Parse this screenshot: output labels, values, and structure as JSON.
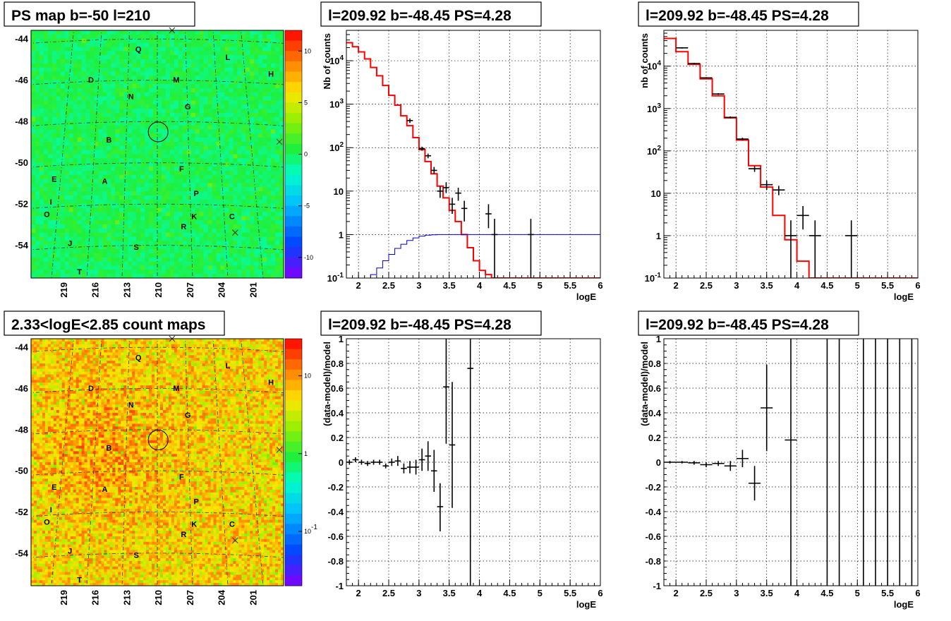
{
  "chart_data": [
    {
      "type": "heatmap",
      "title": "PS map b=-50 l=210",
      "xlim": [
        222,
        198
      ],
      "ylim": [
        -55.6,
        -43.6
      ],
      "x_ticks": [
        "219",
        "216",
        "213",
        "210",
        "207",
        "204",
        "201"
      ],
      "y_ticks": [
        "-44",
        "-46",
        "-48",
        "-50",
        "-52",
        "-54"
      ],
      "colorbar": {
        "min": -12,
        "max": 12,
        "scale": "linear",
        "ticks": [
          "10",
          "5",
          "0",
          "-5",
          "-10"
        ]
      },
      "labels": [
        {
          "text": "Q",
          "l": 211.8,
          "b": -44.5
        },
        {
          "text": "L",
          "l": 203.3,
          "b": -44.9
        },
        {
          "text": "H",
          "l": 199.2,
          "b": -45.7
        },
        {
          "text": "D",
          "l": 216.3,
          "b": -46.0
        },
        {
          "text": "M",
          "l": 208.2,
          "b": -46.0
        },
        {
          "text": "N",
          "l": 212.5,
          "b": -46.8
        },
        {
          "text": "G",
          "l": 207.1,
          "b": -47.3
        },
        {
          "text": "B",
          "l": 214.6,
          "b": -48.9
        },
        {
          "text": "F",
          "l": 207.7,
          "b": -50.3
        },
        {
          "text": "E",
          "l": 219.8,
          "b": -50.8
        },
        {
          "text": "A",
          "l": 215.0,
          "b": -50.9
        },
        {
          "text": "P",
          "l": 206.3,
          "b": -51.5
        },
        {
          "text": "I",
          "l": 220.1,
          "b": -51.9
        },
        {
          "text": "O",
          "l": 220.5,
          "b": -52.5
        },
        {
          "text": "K",
          "l": 206.5,
          "b": -52.6
        },
        {
          "text": "C",
          "l": 202.9,
          "b": -52.6
        },
        {
          "text": "R",
          "l": 207.5,
          "b": -53.1
        },
        {
          "text": "J",
          "l": 218.3,
          "b": -53.9
        },
        {
          "text": "S",
          "l": 212.0,
          "b": -54.1
        },
        {
          "text": "T",
          "l": 217.4,
          "b": -55.3
        }
      ]
    },
    {
      "type": "line",
      "title": "l=209.92 b=-48.45 PS=4.28",
      "xlabel": "logE",
      "ylabel": "Nb of counts",
      "xlim": [
        1.8,
        6
      ],
      "ylim": [
        0.1,
        50000
      ],
      "yscale": "log",
      "grid": true,
      "x_ticks": [
        "2",
        "2.5",
        "3",
        "3.5",
        "4",
        "4.5",
        "5",
        "5.5",
        "6"
      ],
      "y_ticks": [
        "10^{-1}",
        "1",
        "10",
        "10^{2}",
        "10^{3}",
        "10^{4}"
      ],
      "series": [
        {
          "style": "step",
          "color": "#ff0000",
          "edges": [
            1.8,
            1.9,
            2.0,
            2.1,
            2.2,
            2.3,
            2.4,
            2.5,
            2.6,
            2.7,
            2.8,
            2.9,
            3.0,
            3.1,
            3.2,
            3.3,
            3.4,
            3.5,
            3.6,
            3.7,
            3.8,
            3.9,
            4.0,
            4.1,
            4.2,
            4.3,
            4.4,
            6.0
          ],
          "values": [
            26000,
            21000,
            16000,
            11000,
            7000,
            4500,
            2700,
            1600,
            950,
            540,
            320,
            170,
            90,
            48,
            25,
            13,
            7,
            3.6,
            2.0,
            1.0,
            0.5,
            0.25,
            0.15,
            0.12,
            0.1,
            0.1,
            0.1
          ]
        },
        {
          "style": "step",
          "color": "#0000cc",
          "edges": [
            1.8,
            2.1,
            2.2,
            2.3,
            2.4,
            2.5,
            2.6,
            2.7,
            2.8,
            2.9,
            3.0,
            3.1,
            3.2,
            3.3,
            3.4,
            3.5,
            3.6,
            6.0
          ],
          "values": [
            0.1,
            0.1,
            0.12,
            0.17,
            0.25,
            0.35,
            0.48,
            0.6,
            0.73,
            0.84,
            0.92,
            0.97,
            0.99,
            1.0,
            1.0,
            1.0,
            1.0
          ]
        },
        {
          "style": "points",
          "color": "#000000",
          "points": [
            {
              "x": 2.85,
              "y": 420,
              "xerr": 0.05,
              "lo": 370,
              "hi": 470
            },
            {
              "x": 3.05,
              "y": 95,
              "xerr": 0.05,
              "lo": 85,
              "hi": 105
            },
            {
              "x": 3.15,
              "y": 65,
              "xerr": 0.05,
              "lo": 57,
              "hi": 73
            },
            {
              "x": 3.25,
              "y": 30,
              "xerr": 0.05,
              "lo": 25,
              "hi": 36
            },
            {
              "x": 3.35,
              "y": 10,
              "xerr": 0.05,
              "lo": 7,
              "hi": 13
            },
            {
              "x": 3.45,
              "y": 12,
              "xerr": 0.05,
              "lo": 9,
              "hi": 16
            },
            {
              "x": 3.55,
              "y": 5,
              "xerr": 0.05,
              "lo": 3,
              "hi": 7
            },
            {
              "x": 3.65,
              "y": 9,
              "xerr": 0.05,
              "lo": 6,
              "hi": 12
            },
            {
              "x": 3.75,
              "y": 4,
              "xerr": 0.05,
              "lo": 2,
              "hi": 6
            },
            {
              "x": 4.15,
              "y": 3,
              "xerr": 0.05,
              "lo": 1.4,
              "hi": 5
            },
            {
              "x": 4.25,
              "y": 1,
              "xerr": 0.05,
              "lo": 0.1,
              "hi": 2.3
            },
            {
              "x": 4.85,
              "y": 1,
              "xerr": 0.05,
              "lo": 0.1,
              "hi": 2.3
            }
          ]
        }
      ]
    },
    {
      "type": "line",
      "title": "l=209.92 b=-48.45 PS=4.28",
      "xlabel": "logE",
      "ylabel": "nb of counts",
      "xlim": [
        1.8,
        6
      ],
      "ylim": [
        0.1,
        70000
      ],
      "yscale": "log",
      "grid": true,
      "x_ticks": [
        "2",
        "2.5",
        "3",
        "3.5",
        "4",
        "4.5",
        "5",
        "5.5",
        "6"
      ],
      "y_ticks": [
        "10^{-1}",
        "1",
        "10",
        "10^{2}",
        "10^{3}",
        "10^{4}"
      ],
      "series": [
        {
          "style": "step",
          "color": "#ff0000",
          "edges": [
            1.8,
            2.0,
            2.2,
            2.4,
            2.6,
            2.8,
            3.0,
            3.2,
            3.4,
            3.6,
            3.8,
            4.0,
            4.2,
            6.0
          ],
          "values": [
            45000,
            22000,
            11000,
            5000,
            2000,
            600,
            180,
            45,
            14,
            3.0,
            0.8,
            0.25,
            0.1
          ]
        },
        {
          "style": "points",
          "color": "#000000",
          "points": [
            {
              "x": 2.1,
              "y": 27000,
              "xerr": 0.1,
              "lo": 26000,
              "hi": 28000
            },
            {
              "x": 2.3,
              "y": 11500,
              "xerr": 0.1,
              "lo": 11000,
              "hi": 12000
            },
            {
              "x": 2.5,
              "y": 5300,
              "xerr": 0.1,
              "lo": 5100,
              "hi": 5500
            },
            {
              "x": 2.7,
              "y": 2200,
              "xerr": 0.1,
              "lo": 2100,
              "hi": 2300
            },
            {
              "x": 2.9,
              "y": 620,
              "xerr": 0.1,
              "lo": 590,
              "hi": 650
            },
            {
              "x": 3.1,
              "y": 190,
              "xerr": 0.1,
              "lo": 175,
              "hi": 205
            },
            {
              "x": 3.3,
              "y": 38,
              "xerr": 0.1,
              "lo": 32,
              "hi": 44
            },
            {
              "x": 3.5,
              "y": 16,
              "xerr": 0.1,
              "lo": 12,
              "hi": 20
            },
            {
              "x": 3.7,
              "y": 12,
              "xerr": 0.1,
              "lo": 9,
              "hi": 15
            },
            {
              "x": 3.9,
              "y": 1,
              "xerr": 0.1,
              "lo": 0.1,
              "hi": 2.3
            },
            {
              "x": 4.1,
              "y": 3,
              "xerr": 0.1,
              "lo": 1.4,
              "hi": 5
            },
            {
              "x": 4.3,
              "y": 1,
              "xerr": 0.1,
              "lo": 0.1,
              "hi": 2.3
            },
            {
              "x": 4.9,
              "y": 1,
              "xerr": 0.1,
              "lo": 0.1,
              "hi": 2.3
            }
          ]
        }
      ]
    },
    {
      "type": "heatmap",
      "title": "2.33<logE<2.85 count maps",
      "xlim": [
        222,
        198
      ],
      "ylim": [
        -55.6,
        -43.6
      ],
      "x_ticks": [
        "219",
        "216",
        "213",
        "210",
        "207",
        "204",
        "201"
      ],
      "y_ticks": [
        "-44",
        "-46",
        "-48",
        "-50",
        "-52",
        "-54"
      ],
      "colorbar": {
        "min": 0.02,
        "max": 30,
        "scale": "log",
        "ticks": [
          "10",
          "1",
          "10^{-1}"
        ]
      },
      "labels": "same as map 1"
    },
    {
      "type": "scatter",
      "title": "l=209.92 b=-48.45 PS=4.28",
      "xlabel": "logE",
      "ylabel": "(data-model)/model",
      "xlim": [
        1.8,
        6
      ],
      "ylim": [
        -1,
        1
      ],
      "grid": true,
      "x_ticks": [
        "2",
        "2.5",
        "3",
        "3.5",
        "4",
        "4.5",
        "5",
        "5.5",
        "6"
      ],
      "y_ticks": [
        "1",
        "0.8",
        "0.6",
        "0.4",
        "0.2",
        "0",
        "-0.2",
        "-0.4",
        "-0.6",
        "-0.8",
        "-1"
      ],
      "points": [
        {
          "x": 1.85,
          "y": 0.0,
          "xerr": 0.05,
          "lo": -0.02,
          "hi": 0.02
        },
        {
          "x": 1.95,
          "y": 0.02,
          "xerr": 0.05,
          "lo": 0.0,
          "hi": 0.04
        },
        {
          "x": 2.05,
          "y": 0.0,
          "xerr": 0.05,
          "lo": -0.02,
          "hi": 0.02
        },
        {
          "x": 2.15,
          "y": -0.01,
          "xerr": 0.05,
          "lo": -0.03,
          "hi": 0.01
        },
        {
          "x": 2.25,
          "y": 0.0,
          "xerr": 0.05,
          "lo": -0.02,
          "hi": 0.02
        },
        {
          "x": 2.35,
          "y": 0.0,
          "xerr": 0.05,
          "lo": -0.02,
          "hi": 0.02
        },
        {
          "x": 2.45,
          "y": -0.03,
          "xerr": 0.05,
          "lo": -0.05,
          "hi": -0.01
        },
        {
          "x": 2.55,
          "y": 0.0,
          "xerr": 0.05,
          "lo": -0.03,
          "hi": 0.03
        },
        {
          "x": 2.65,
          "y": 0.01,
          "xerr": 0.05,
          "lo": -0.03,
          "hi": 0.05
        },
        {
          "x": 2.75,
          "y": -0.05,
          "xerr": 0.05,
          "lo": -0.09,
          "hi": -0.01
        },
        {
          "x": 2.85,
          "y": -0.04,
          "xerr": 0.05,
          "lo": -0.09,
          "hi": 0.01
        },
        {
          "x": 2.95,
          "y": -0.04,
          "xerr": 0.05,
          "lo": -0.1,
          "hi": 0.02
        },
        {
          "x": 3.05,
          "y": 0.02,
          "xerr": 0.05,
          "lo": -0.07,
          "hi": 0.11
        },
        {
          "x": 3.15,
          "y": 0.05,
          "xerr": 0.05,
          "lo": -0.07,
          "hi": 0.17
        },
        {
          "x": 3.25,
          "y": -0.07,
          "xerr": 0.05,
          "lo": -0.24,
          "hi": 0.1
        },
        {
          "x": 3.35,
          "y": -0.36,
          "xerr": 0.05,
          "lo": -0.56,
          "hi": -0.17
        },
        {
          "x": 3.45,
          "y": 0.61,
          "xerr": 0.05,
          "lo": 0.15,
          "hi": 1.0
        },
        {
          "x": 3.55,
          "y": 0.14,
          "xerr": 0.05,
          "lo": -0.37,
          "hi": 0.65
        },
        {
          "x": 3.85,
          "y": 0.76,
          "xerr": 0.05,
          "lo": -1.0,
          "hi": 1.0
        }
      ]
    },
    {
      "type": "scatter",
      "title": "l=209.92 b=-48.45 PS=4.28",
      "xlabel": "logE",
      "ylabel": "(data-model)/model",
      "xlim": [
        1.8,
        6
      ],
      "ylim": [
        -1,
        1
      ],
      "grid": true,
      "x_ticks": [
        "2",
        "2.5",
        "3",
        "3.5",
        "4",
        "4.5",
        "5",
        "5.5",
        "6"
      ],
      "y_ticks": [
        "1",
        "0.8",
        "0.6",
        "0.4",
        "0.2",
        "0",
        "-0.2",
        "-0.4",
        "-0.6",
        "-0.8",
        "-1"
      ],
      "points": [
        {
          "x": 1.9,
          "y": 0.0,
          "xerr": 0.1,
          "lo": -0.01,
          "hi": 0.01
        },
        {
          "x": 2.1,
          "y": 0.0,
          "xerr": 0.1,
          "lo": -0.01,
          "hi": 0.01
        },
        {
          "x": 2.3,
          "y": -0.005,
          "xerr": 0.1,
          "lo": -0.02,
          "hi": 0.01
        },
        {
          "x": 2.5,
          "y": -0.02,
          "xerr": 0.1,
          "lo": -0.04,
          "hi": 0.0
        },
        {
          "x": 2.7,
          "y": -0.01,
          "xerr": 0.1,
          "lo": -0.03,
          "hi": 0.01
        },
        {
          "x": 2.9,
          "y": -0.03,
          "xerr": 0.1,
          "lo": -0.07,
          "hi": 0.01
        },
        {
          "x": 3.1,
          "y": 0.03,
          "xerr": 0.1,
          "lo": -0.04,
          "hi": 0.1
        },
        {
          "x": 3.3,
          "y": -0.17,
          "xerr": 0.1,
          "lo": -0.31,
          "hi": -0.03
        },
        {
          "x": 3.5,
          "y": 0.44,
          "xerr": 0.1,
          "lo": 0.09,
          "hi": 0.79
        },
        {
          "x": 3.9,
          "y": 0.18,
          "xerr": 0.1,
          "lo": -1.0,
          "hi": 1.0
        },
        {
          "x": 4.5,
          "y": 1.0,
          "xerr": 0,
          "lo": -1.0,
          "hi": 1.0
        },
        {
          "x": 4.7,
          "y": 1.0,
          "xerr": 0,
          "lo": -1.0,
          "hi": 1.0
        },
        {
          "x": 5.1,
          "y": 1.0,
          "xerr": 0,
          "lo": -1.0,
          "hi": 1.0
        },
        {
          "x": 5.3,
          "y": 1.0,
          "xerr": 0,
          "lo": -1.0,
          "hi": 1.0
        },
        {
          "x": 5.5,
          "y": 1.0,
          "xerr": 0,
          "lo": -1.0,
          "hi": 1.0
        },
        {
          "x": 5.7,
          "y": 1.0,
          "xerr": 0,
          "lo": -1.0,
          "hi": 1.0
        },
        {
          "x": 5.9,
          "y": 1.0,
          "xerr": 0,
          "lo": -1.0,
          "hi": 1.0
        }
      ]
    }
  ]
}
